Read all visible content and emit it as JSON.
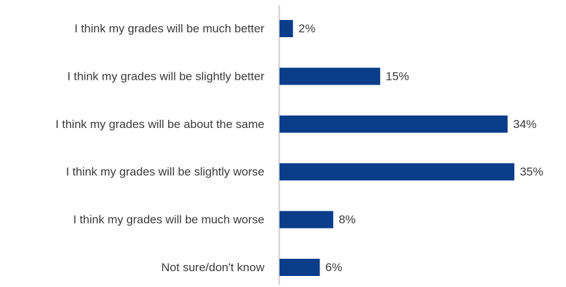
{
  "chart_data": {
    "type": "bar",
    "orientation": "horizontal",
    "categories": [
      "I think my grades will be much better",
      "I think my grades will be slightly better",
      "I think my grades will be about the same",
      "I think my grades will be slightly worse",
      "I think my grades will be much worse",
      "Not sure/don't know"
    ],
    "values": [
      2,
      15,
      34,
      35,
      8,
      6
    ],
    "value_labels": [
      "2%",
      "15%",
      "34%",
      "35%",
      "8%",
      "6%"
    ],
    "value_unit": "%",
    "title": "",
    "xlabel": "",
    "ylabel": "",
    "xlim": [
      0,
      35
    ],
    "grid": false,
    "legend": "none",
    "bar_color": "#0a3d8a",
    "axis_color": "#cccccc",
    "text_color": "#3a3a3a"
  }
}
